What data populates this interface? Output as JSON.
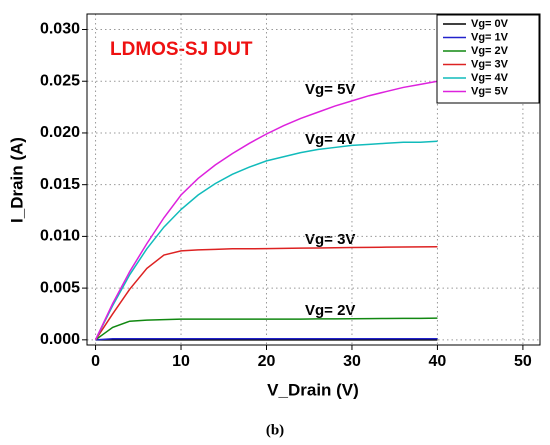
{
  "chart_data": {
    "type": "line",
    "xlabel": "V_Drain (V)",
    "ylabel": "I_Drain (A)",
    "caption": "(b)",
    "annotations": [
      "LDMOS-SJ DUT",
      "Vg= 5V",
      "Vg= 4V",
      "Vg= 3V",
      "Vg= 2V"
    ],
    "annotation_color": "#ee1111",
    "x": [
      0,
      2,
      4,
      6,
      8,
      10,
      12,
      14,
      16,
      18,
      20,
      22,
      24,
      26,
      28,
      30,
      32,
      34,
      36,
      38,
      40
    ],
    "series": [
      {
        "name": "Vg= 0V",
        "color": "#000000",
        "values": [
          0,
          0,
          0,
          0,
          0,
          0,
          0,
          0,
          0,
          0,
          0,
          0,
          0,
          0,
          0,
          0,
          0,
          0,
          0,
          0,
          0
        ]
      },
      {
        "name": "Vg= 1V",
        "color": "#2222cc",
        "values": [
          0,
          0.0001,
          0.0001,
          0.0001,
          0.0001,
          0.0001,
          0.0001,
          0.0001,
          0.0001,
          0.0001,
          0.0001,
          0.0001,
          0.0001,
          0.0001,
          0.0001,
          0.0001,
          0.0001,
          0.0001,
          0.0001,
          0.0001,
          0.0001
        ]
      },
      {
        "name": "Vg= 2V",
        "color": "#118811",
        "values": [
          0,
          0.0012,
          0.0018,
          0.0019,
          0.00195,
          0.002,
          0.002,
          0.002,
          0.002,
          0.002,
          0.002,
          0.002,
          0.002,
          0.00202,
          0.00203,
          0.00204,
          0.00205,
          0.00206,
          0.00207,
          0.00208,
          0.0021
        ]
      },
      {
        "name": "Vg= 3V",
        "color": "#dd2222",
        "values": [
          0,
          0.0025,
          0.0049,
          0.0069,
          0.0082,
          0.0086,
          0.0087,
          0.00875,
          0.0088,
          0.0088,
          0.00882,
          0.00884,
          0.00886,
          0.00888,
          0.0089,
          0.00892,
          0.00894,
          0.00896,
          0.00897,
          0.00899,
          0.009
        ]
      },
      {
        "name": "Vg= 4V",
        "color": "#11bbbb",
        "values": [
          0,
          0.0033,
          0.0063,
          0.0088,
          0.0109,
          0.0126,
          0.014,
          0.0151,
          0.016,
          0.0167,
          0.0173,
          0.0177,
          0.0181,
          0.0184,
          0.0186,
          0.0188,
          0.0189,
          0.019,
          0.0191,
          0.0191,
          0.0192
        ]
      },
      {
        "name": "Vg= 5V",
        "color": "#dd22dd",
        "values": [
          0,
          0.0035,
          0.0066,
          0.0093,
          0.0118,
          0.014,
          0.0156,
          0.0169,
          0.018,
          0.019,
          0.0199,
          0.0207,
          0.0214,
          0.022,
          0.0226,
          0.0231,
          0.0236,
          0.024,
          0.0244,
          0.0247,
          0.025
        ]
      }
    ],
    "xlim": [
      -1,
      52
    ],
    "ylim": [
      -0.0005,
      0.0315
    ],
    "xticks": [
      0,
      10,
      20,
      30,
      40,
      50
    ],
    "yticks": [
      {
        "value": 0,
        "label": "0.000"
      },
      {
        "value": 0.005,
        "label": "0.005"
      },
      {
        "value": 0.01,
        "label": "0.010"
      },
      {
        "value": 0.015,
        "label": "0.015"
      },
      {
        "value": 0.02,
        "label": "0.020"
      },
      {
        "value": 0.025,
        "label": "0.025"
      },
      {
        "value": 0.03,
        "label": "0.030"
      }
    ],
    "grid": true
  }
}
